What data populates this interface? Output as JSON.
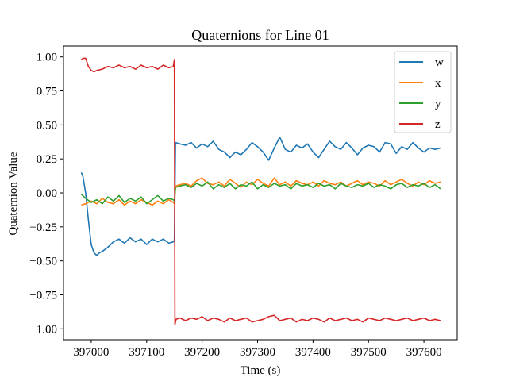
{
  "chart_data": {
    "type": "line",
    "title": "Quaternions for Line 01",
    "xlabel": "Time (s)",
    "ylabel": "Quaternion Value",
    "xlim": [
      396950,
      397660
    ],
    "ylim": [
      -1.08,
      1.08
    ],
    "xticks": [
      397000,
      397100,
      397200,
      397300,
      397400,
      397500,
      397600
    ],
    "yticks": [
      -1.0,
      -0.75,
      -0.5,
      -0.25,
      0.0,
      0.25,
      0.5,
      0.75,
      1.0
    ],
    "xtick_labels": [
      "397000",
      "397100",
      "397200",
      "397300",
      "397400",
      "397500",
      "397600"
    ],
    "ytick_labels": [
      "−1.00",
      "−0.75",
      "−0.50",
      "−0.25",
      "0.00",
      "0.25",
      "0.50",
      "0.75",
      "1.00"
    ],
    "grid": false,
    "legend_position": "upper right",
    "series": [
      {
        "name": "w",
        "color": "#1f77b4",
        "x": [
          396982,
          396985,
          396990,
          396995,
          397000,
          397005,
          397010,
          397015,
          397020,
          397030,
          397040,
          397050,
          397060,
          397070,
          397080,
          397090,
          397100,
          397110,
          397120,
          397130,
          397140,
          397148,
          397150,
          397152,
          397160,
          397170,
          397180,
          397190,
          397200,
          397210,
          397220,
          397230,
          397240,
          397250,
          397260,
          397270,
          397280,
          397290,
          397300,
          397310,
          397320,
          397330,
          397340,
          397350,
          397360,
          397370,
          397380,
          397390,
          397400,
          397410,
          397420,
          397430,
          397440,
          397450,
          397460,
          397470,
          397480,
          397490,
          397500,
          397510,
          397520,
          397530,
          397540,
          397550,
          397560,
          397570,
          397580,
          397590,
          397600,
          397610,
          397620,
          397630
        ],
        "y": [
          0.15,
          0.12,
          0.0,
          -0.2,
          -0.38,
          -0.44,
          -0.46,
          -0.44,
          -0.43,
          -0.4,
          -0.36,
          -0.34,
          -0.37,
          -0.33,
          -0.36,
          -0.34,
          -0.38,
          -0.34,
          -0.36,
          -0.34,
          -0.37,
          -0.36,
          -0.35,
          0.37,
          0.36,
          0.35,
          0.37,
          0.33,
          0.36,
          0.34,
          0.38,
          0.32,
          0.3,
          0.26,
          0.3,
          0.28,
          0.32,
          0.37,
          0.34,
          0.3,
          0.24,
          0.33,
          0.41,
          0.32,
          0.3,
          0.35,
          0.33,
          0.36,
          0.3,
          0.26,
          0.32,
          0.38,
          0.34,
          0.32,
          0.37,
          0.33,
          0.28,
          0.33,
          0.35,
          0.34,
          0.3,
          0.37,
          0.36,
          0.29,
          0.34,
          0.32,
          0.37,
          0.33,
          0.3,
          0.33,
          0.32,
          0.33
        ]
      },
      {
        "name": "x",
        "color": "#ff7f0e",
        "x": [
          396982,
          396990,
          397000,
          397010,
          397020,
          397030,
          397040,
          397050,
          397060,
          397070,
          397080,
          397090,
          397100,
          397110,
          397120,
          397130,
          397140,
          397148,
          397150,
          397152,
          397160,
          397170,
          397180,
          397190,
          397200,
          397210,
          397220,
          397230,
          397240,
          397250,
          397260,
          397270,
          397280,
          397290,
          397300,
          397310,
          397320,
          397330,
          397340,
          397350,
          397360,
          397370,
          397380,
          397390,
          397400,
          397410,
          397420,
          397430,
          397440,
          397450,
          397460,
          397470,
          397480,
          397490,
          397500,
          397510,
          397520,
          397530,
          397540,
          397550,
          397560,
          397570,
          397580,
          397590,
          397600,
          397610,
          397620,
          397630
        ],
        "y": [
          -0.09,
          -0.08,
          -0.06,
          -0.08,
          -0.04,
          -0.07,
          -0.08,
          -0.05,
          -0.09,
          -0.06,
          -0.08,
          -0.05,
          -0.07,
          -0.09,
          -0.06,
          -0.08,
          -0.05,
          -0.07,
          -0.08,
          0.05,
          0.06,
          0.07,
          0.05,
          0.09,
          0.11,
          0.07,
          0.06,
          0.08,
          0.05,
          0.1,
          0.07,
          0.04,
          0.08,
          0.06,
          0.1,
          0.07,
          0.05,
          0.11,
          0.06,
          0.08,
          0.05,
          0.09,
          0.07,
          0.06,
          0.08,
          0.05,
          0.09,
          0.07,
          0.06,
          0.08,
          0.05,
          0.07,
          0.09,
          0.06,
          0.08,
          0.07,
          0.05,
          0.09,
          0.06,
          0.08,
          0.1,
          0.07,
          0.05,
          0.08,
          0.06,
          0.09,
          0.07,
          0.08
        ]
      },
      {
        "name": "y",
        "color": "#2ca02c",
        "x": [
          396982,
          396990,
          397000,
          397010,
          397020,
          397030,
          397040,
          397050,
          397060,
          397070,
          397080,
          397090,
          397100,
          397110,
          397120,
          397130,
          397140,
          397148,
          397150,
          397152,
          397160,
          397170,
          397180,
          397190,
          397200,
          397210,
          397220,
          397230,
          397240,
          397250,
          397260,
          397270,
          397280,
          397290,
          397300,
          397310,
          397320,
          397330,
          397340,
          397350,
          397360,
          397370,
          397380,
          397390,
          397400,
          397410,
          397420,
          397430,
          397440,
          397450,
          397460,
          397470,
          397480,
          397490,
          397500,
          397510,
          397520,
          397530,
          397540,
          397550,
          397560,
          397570,
          397580,
          397590,
          397600,
          397610,
          397620,
          397630
        ],
        "y": [
          -0.01,
          -0.04,
          -0.07,
          -0.05,
          -0.08,
          -0.03,
          -0.06,
          -0.02,
          -0.07,
          -0.04,
          -0.06,
          -0.03,
          -0.08,
          -0.05,
          -0.02,
          -0.06,
          -0.04,
          -0.05,
          -0.06,
          0.04,
          0.05,
          0.06,
          0.04,
          0.07,
          0.05,
          0.08,
          0.03,
          0.06,
          0.04,
          0.07,
          0.03,
          0.06,
          0.05,
          0.08,
          0.03,
          0.06,
          0.04,
          0.07,
          0.05,
          0.06,
          0.03,
          0.07,
          0.05,
          0.06,
          0.04,
          0.07,
          0.05,
          0.06,
          0.03,
          0.07,
          0.05,
          0.04,
          0.06,
          0.05,
          0.07,
          0.04,
          0.06,
          0.05,
          0.03,
          0.06,
          0.07,
          0.04,
          0.06,
          0.05,
          0.07,
          0.04,
          0.06,
          0.03
        ]
      },
      {
        "name": "z",
        "color": "#d62728",
        "x": [
          396982,
          396986,
          396990,
          396995,
          397000,
          397005,
          397010,
          397020,
          397030,
          397040,
          397050,
          397060,
          397070,
          397080,
          397090,
          397100,
          397110,
          397120,
          397130,
          397140,
          397148,
          397150,
          397151,
          397152,
          397153,
          397160,
          397170,
          397180,
          397190,
          397200,
          397210,
          397220,
          397230,
          397240,
          397250,
          397260,
          397270,
          397280,
          397290,
          397300,
          397310,
          397320,
          397330,
          397340,
          397350,
          397360,
          397370,
          397380,
          397390,
          397400,
          397410,
          397420,
          397430,
          397440,
          397450,
          397460,
          397470,
          397480,
          397490,
          397500,
          397510,
          397520,
          397530,
          397540,
          397550,
          397560,
          397570,
          397580,
          397590,
          397600,
          397610,
          397620,
          397630
        ],
        "y": [
          0.98,
          0.99,
          0.99,
          0.93,
          0.9,
          0.89,
          0.9,
          0.91,
          0.93,
          0.92,
          0.94,
          0.92,
          0.93,
          0.91,
          0.94,
          0.92,
          0.93,
          0.91,
          0.94,
          0.92,
          0.93,
          0.98,
          -0.97,
          -0.95,
          -0.93,
          -0.92,
          -0.94,
          -0.92,
          -0.93,
          -0.91,
          -0.94,
          -0.92,
          -0.93,
          -0.95,
          -0.92,
          -0.94,
          -0.93,
          -0.92,
          -0.95,
          -0.94,
          -0.93,
          -0.91,
          -0.9,
          -0.94,
          -0.93,
          -0.92,
          -0.95,
          -0.93,
          -0.94,
          -0.92,
          -0.93,
          -0.95,
          -0.92,
          -0.94,
          -0.93,
          -0.92,
          -0.94,
          -0.93,
          -0.95,
          -0.92,
          -0.93,
          -0.94,
          -0.92,
          -0.93,
          -0.94,
          -0.93,
          -0.92,
          -0.94,
          -0.93,
          -0.92,
          -0.94,
          -0.93,
          -0.94
        ]
      }
    ]
  }
}
